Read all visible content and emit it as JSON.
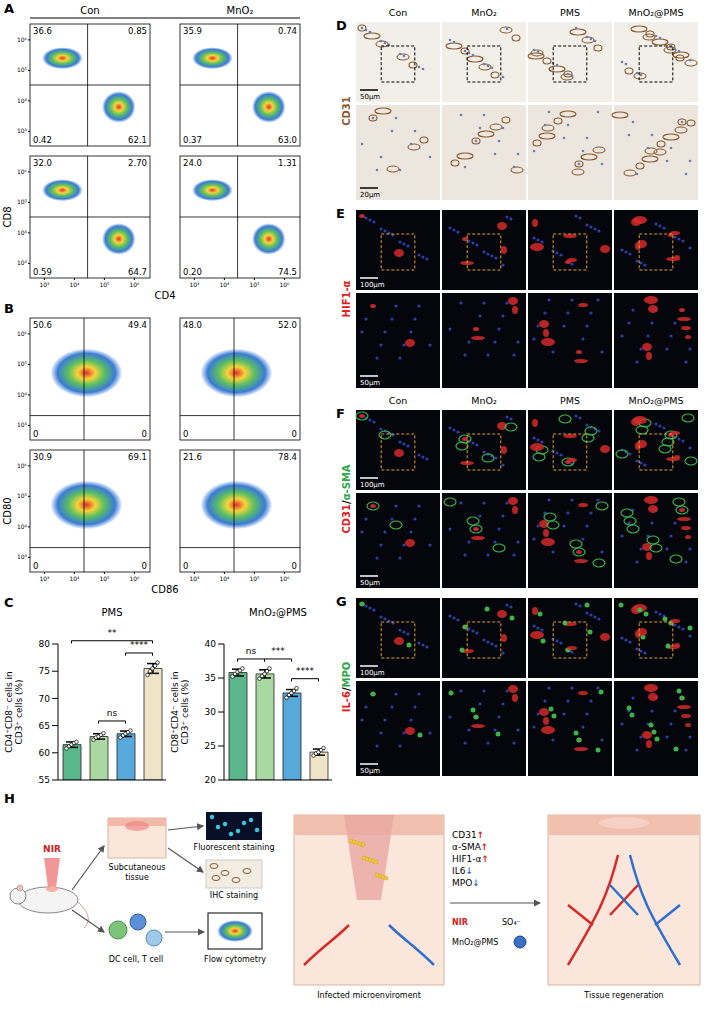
{
  "figure": {
    "A": {
      "letter": "A",
      "columns": [
        "Con",
        "MnO₂"
      ],
      "x_label": "CD4",
      "y_label": "CD8",
      "axis_ticks": [
        "10³",
        "10⁴",
        "10⁵",
        "10⁶"
      ],
      "rows": [
        [
          {
            "UL": "36.6",
            "UR": "0.85",
            "LL": "0.42",
            "LR": "62.1"
          },
          {
            "UL": "35.9",
            "UR": "0.74",
            "LL": "0.37",
            "LR": "63.0"
          }
        ],
        [
          {
            "UL": "32.0",
            "UR": "2.70",
            "LL": "0.59",
            "LR": "64.7"
          },
          {
            "UL": "24.0",
            "UR": "1.31",
            "LL": "0.20",
            "LR": "74.5"
          }
        ]
      ]
    },
    "B": {
      "letter": "B",
      "x_label": "CD86",
      "y_label": "CD80",
      "axis_ticks": [
        "10³",
        "10⁴",
        "10⁵",
        "10⁶"
      ],
      "rows": [
        [
          {
            "UL": "50.6",
            "UR": "49.4",
            "LL": "0",
            "LR": "0"
          },
          {
            "UL": "48.0",
            "UR": "52.0",
            "LL": "0",
            "LR": "0"
          }
        ],
        [
          {
            "UL": "30.9",
            "UR": "69.1",
            "LL": "0",
            "LR": "0"
          },
          {
            "UL": "21.6",
            "UR": "78.4",
            "LL": "0",
            "LR": "0"
          }
        ]
      ]
    },
    "C": {
      "letter": "C"
    },
    "images": [
      {
        "letter": "D",
        "label": "CD31",
        "columns": [
          "Con",
          "MnO₂",
          "PMS",
          "MnO₂@PMS"
        ],
        "scale_bars": [
          "50μm",
          "20μm"
        ]
      },
      {
        "letter": "E",
        "label": "HIF1-α",
        "scale_bars": [
          "100μm",
          "50μm"
        ]
      },
      {
        "letter": "F",
        "label": "CD31/α-SMA",
        "columns": [
          "Con",
          "MnO₂",
          "PMS",
          "MnO₂@PMS"
        ],
        "scale_bars": [
          "100μm",
          "50μm"
        ]
      },
      {
        "letter": "G",
        "label": "IL-6/MPO",
        "scale_bars": [
          "100μm",
          "50μm"
        ]
      }
    ],
    "H": {
      "letter": "H",
      "nir": "NIR",
      "subcutaneous": "Subcutaneous tissue",
      "fluorescent": "Fluorescent staining",
      "ihc": "IHC staining",
      "cells": "DC cell, T cell",
      "flow": "Flow cytometry",
      "infected": "Infected microenviroment",
      "effects": [
        {
          "text": "CD31↑",
          "up": true
        },
        {
          "text": "α-SMA↑",
          "up": true
        },
        {
          "text": "HIF1-α↑",
          "up": true
        },
        {
          "text": "IL6↓",
          "up": false
        },
        {
          "text": "MPO↓",
          "up": false
        }
      ],
      "agent": "MnO₂@PMS",
      "radical": "SO₄⁻",
      "regeneration": "Tissue regeneration"
    }
  },
  "chart_data": [
    {
      "type": "bar",
      "title": "PMS",
      "y_label": "CD4⁺CD8⁻ cells in CD3⁺ cells (%)",
      "categories": [
        null,
        null,
        null,
        null
      ],
      "values": [
        61.5,
        63.0,
        63.5,
        75.5
      ],
      "errors": [
        0.5,
        0.5,
        0.5,
        0.9
      ],
      "points": [
        [
          60.8,
          61.2,
          61.5,
          61.8,
          62.0
        ],
        [
          62.4,
          62.8,
          63.0,
          63.3,
          63.6
        ],
        [
          62.8,
          63.2,
          63.5,
          63.8,
          64.1
        ],
        [
          74.3,
          75.0,
          75.5,
          76.0,
          76.6
        ]
      ],
      "colors": [
        "#5ab78a",
        "#a9d9a0",
        "#57a9d9",
        "#f0e4c8"
      ],
      "ylim": [
        55,
        80
      ],
      "yticks": [
        55,
        60,
        65,
        70,
        75,
        80
      ],
      "tick_labels": "y",
      "annotations": [
        {
          "text": "ns",
          "from": 1,
          "to": 2
        },
        {
          "text": "****",
          "from": 2,
          "to": 3
        },
        {
          "text": "**",
          "from": 0,
          "to": 3
        }
      ]
    },
    {
      "type": "bar",
      "title": "MnO₂@PMS",
      "y_label": "CD8⁺CD4⁻ cells in CD3⁺ cells (%)",
      "categories": [
        null,
        null,
        null,
        null
      ],
      "values": [
        35.8,
        35.6,
        32.8,
        24.1
      ],
      "errors": [
        0.5,
        0.6,
        0.5,
        0.45
      ],
      "points": [
        [
          35.2,
          35.6,
          35.9,
          36.1,
          36.4
        ],
        [
          34.9,
          35.3,
          35.6,
          36.0,
          36.4
        ],
        [
          32.1,
          32.5,
          32.8,
          33.1,
          33.5
        ],
        [
          23.6,
          23.9,
          24.1,
          24.4,
          24.7
        ]
      ],
      "colors": [
        "#5ab78a",
        "#a9d9a0",
        "#57a9d9",
        "#f0e4c8"
      ],
      "ylim": [
        20,
        40
      ],
      "yticks": [
        20,
        25,
        30,
        35,
        40
      ],
      "tick_labels": "y",
      "annotations": [
        {
          "text": "ns",
          "from": 0,
          "to": 1
        },
        {
          "text": "***",
          "from": 1,
          "to": 2
        },
        {
          "text": "****",
          "from": 2,
          "to": 3
        }
      ]
    }
  ]
}
